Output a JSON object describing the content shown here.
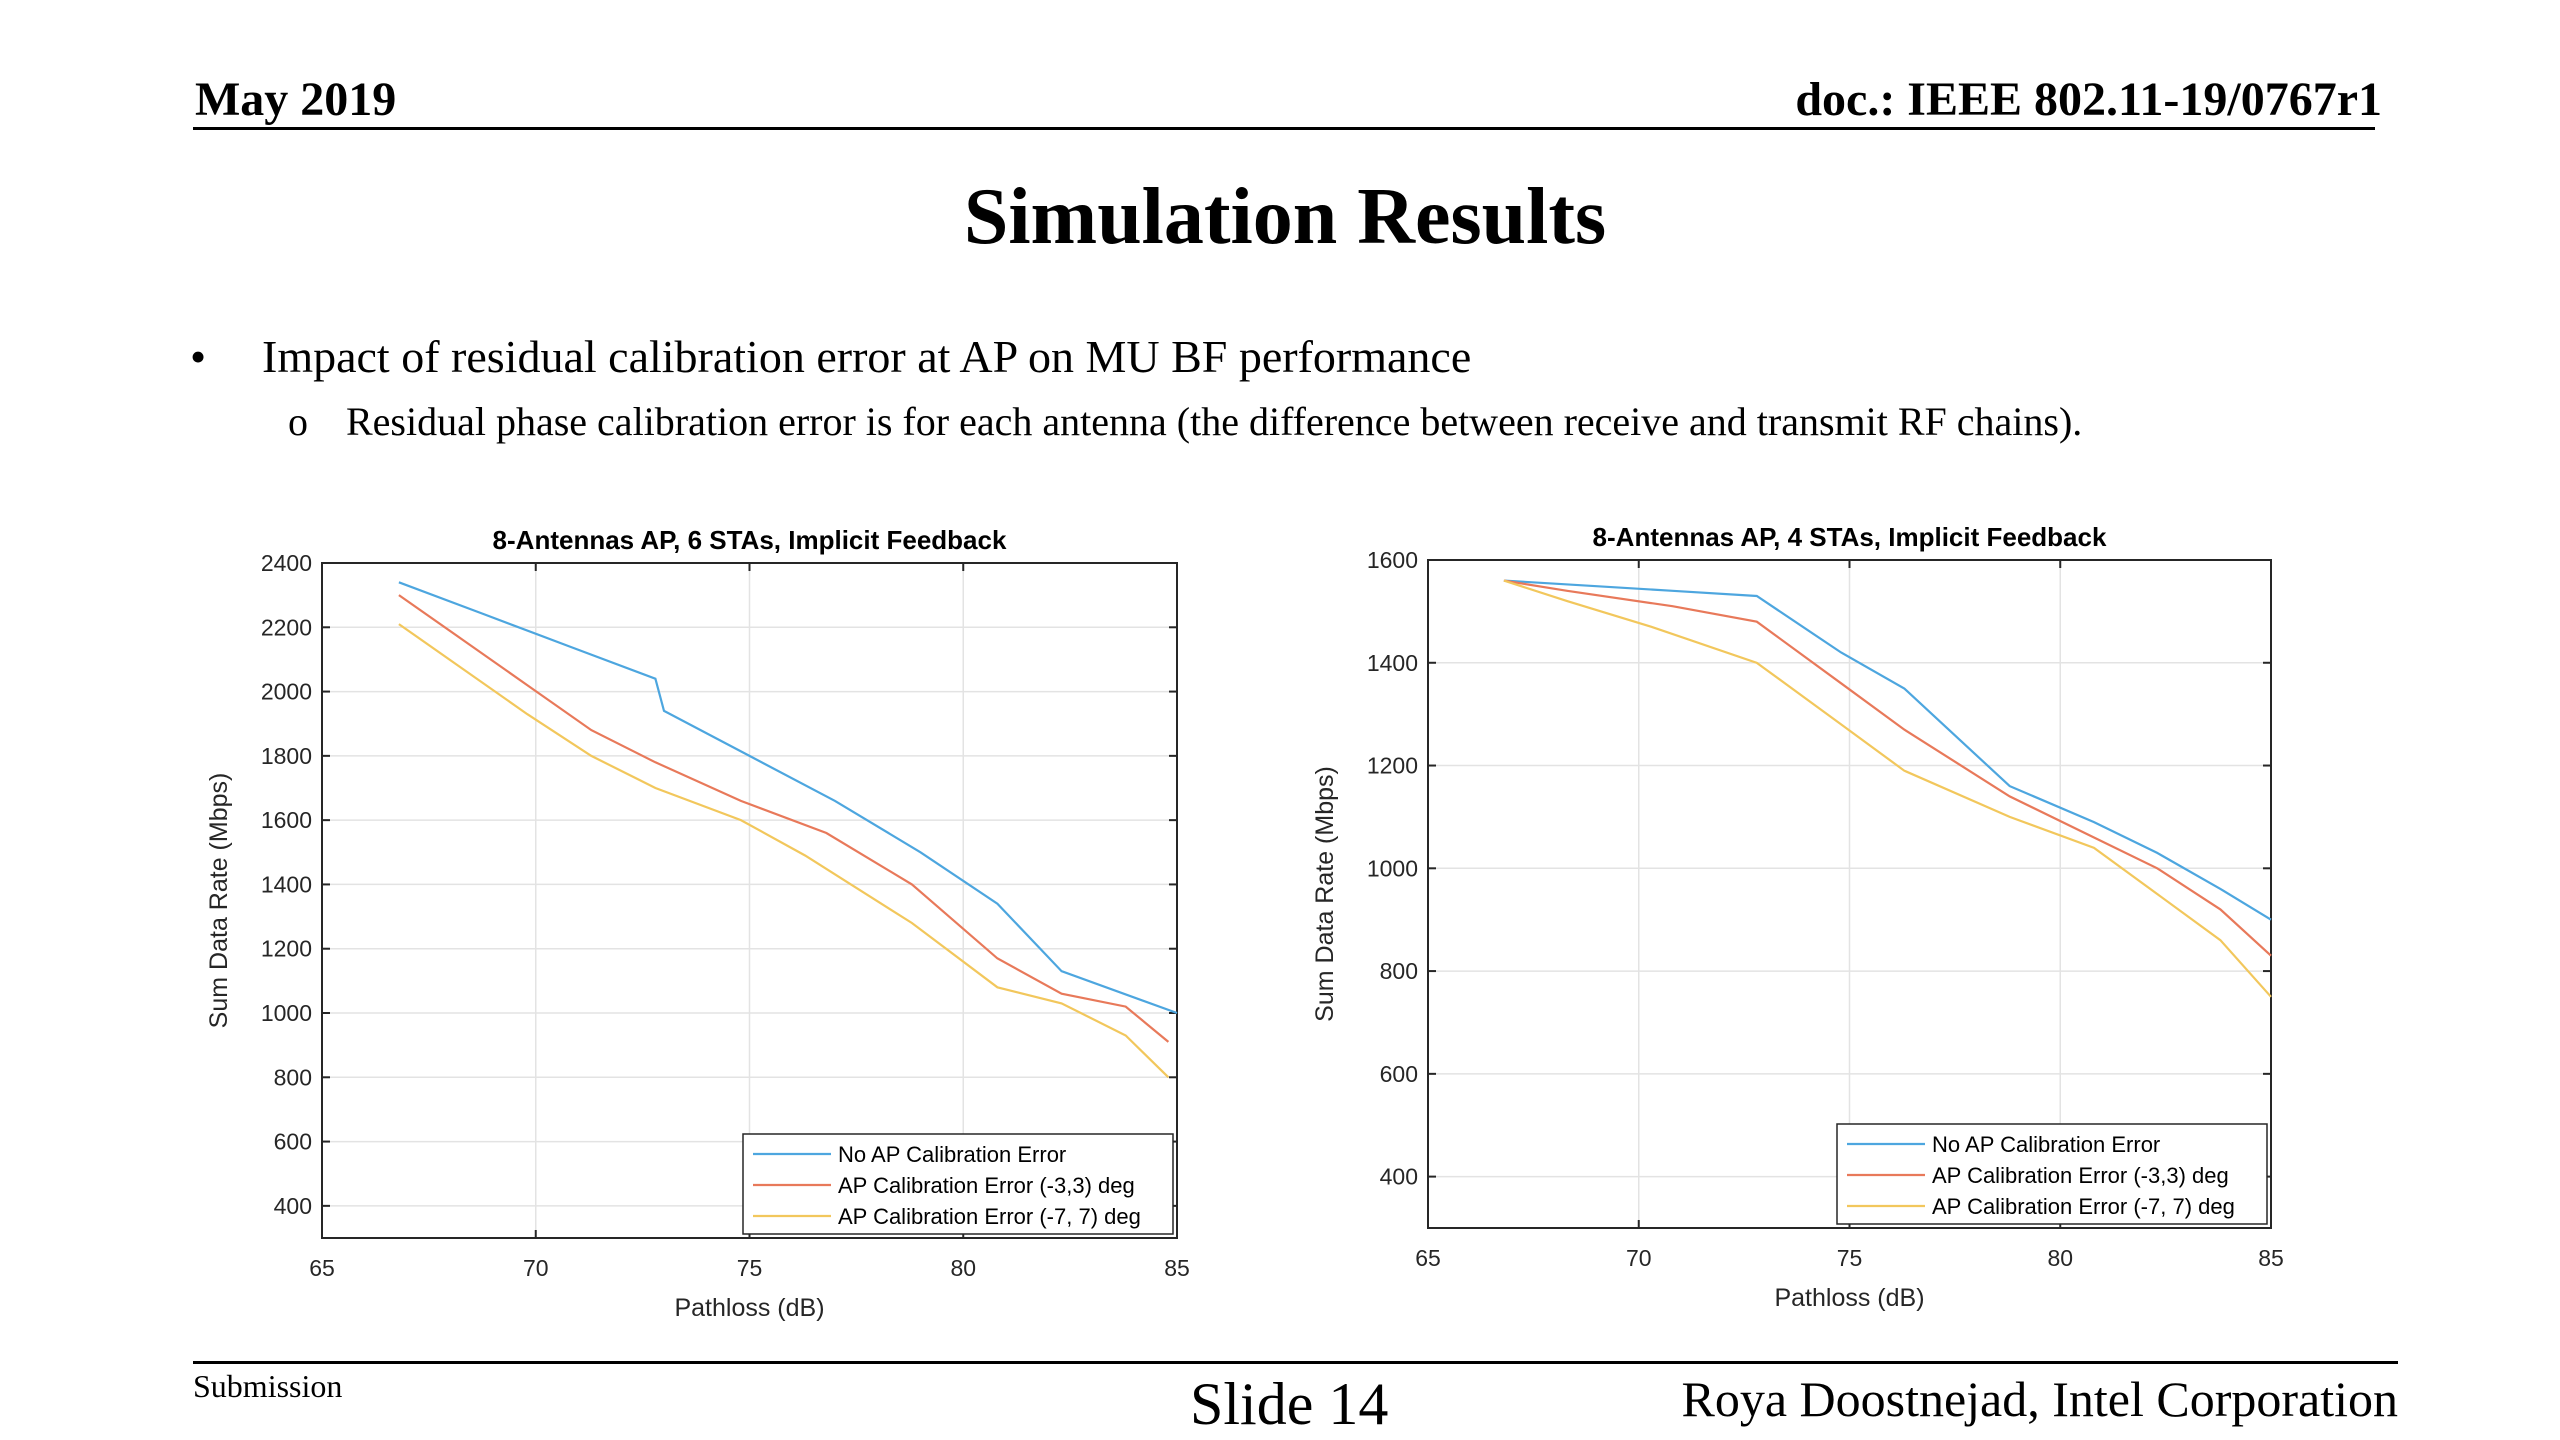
{
  "header": {
    "left": "May 2019",
    "right": "doc.: IEEE 802.11-19/0767r1"
  },
  "title": "Simulation Results",
  "bullets": {
    "main_mark": "•",
    "main": "Impact of residual calibration error at AP on MU BF performance",
    "sub_mark": "o",
    "sub": "Residual phase calibration error is for each antenna (the difference between receive and transmit RF chains)."
  },
  "footer": {
    "left": "Submission",
    "center": "Slide 14",
    "right": "Roya Doostnejad, Intel Corporation"
  },
  "colors": {
    "series1": "#4DA6DF",
    "series2": "#E8795A",
    "series3": "#F2C75C",
    "grid": "#e3e3e3",
    "axis": "#262626"
  },
  "chart_data": [
    {
      "type": "line",
      "title": "8-Antennas AP, 6 STAs, Implicit Feedback",
      "xlabel": "Pathloss (dB)",
      "ylabel": "Sum Data Rate (Mbps)",
      "xlim": [
        65,
        85
      ],
      "ylim": [
        300,
        2400
      ],
      "xticks": [
        65,
        70,
        75,
        80,
        85
      ],
      "yticks": [
        400,
        600,
        800,
        1000,
        1200,
        1400,
        1600,
        1800,
        2000,
        2200,
        2400
      ],
      "grid": true,
      "legend_position": "bottom-right",
      "x": [
        66.8,
        68.8,
        70.8,
        72.8,
        74.8,
        76.8,
        78.8,
        80.8,
        82.8,
        84.8
      ],
      "series": [
        {
          "name": "No AP Calibration Error",
          "values": [
            2340,
            2240,
            2140,
            2040,
            1940,
            1800,
            1660,
            1500,
            1340,
            1130,
            1000
          ],
          "x": [
            66.8,
            68.8,
            70.8,
            72.8,
            73.0,
            75.0,
            77.0,
            79.0,
            80.8,
            82.3,
            85.0
          ]
        },
        {
          "name": "AP Calibration Error (-3,3) deg",
          "values": [
            2300,
            2160,
            2020,
            1880,
            1780,
            1660,
            1560,
            1400,
            1170,
            1060,
            1020,
            910
          ],
          "x": [
            66.8,
            68.3,
            69.8,
            71.3,
            72.8,
            74.8,
            76.8,
            78.8,
            80.8,
            82.3,
            83.8,
            84.8
          ]
        },
        {
          "name": "AP Calibration Error (-7, 7) deg",
          "values": [
            2210,
            2070,
            1930,
            1800,
            1700,
            1600,
            1490,
            1280,
            1080,
            1030,
            930,
            800
          ],
          "x": [
            66.8,
            68.3,
            69.8,
            71.3,
            72.8,
            74.8,
            76.3,
            78.8,
            80.8,
            82.3,
            83.8,
            84.8
          ]
        }
      ]
    },
    {
      "type": "line",
      "title": "8-Antennas AP, 4 STAs, Implicit Feedback",
      "xlabel": "Pathloss (dB)",
      "ylabel": "Sum Data Rate (Mbps)",
      "xlim": [
        65,
        85
      ],
      "ylim": [
        300,
        1600
      ],
      "xticks": [
        65,
        70,
        75,
        80,
        85
      ],
      "yticks": [
        400,
        600,
        800,
        1000,
        1200,
        1400,
        1600
      ],
      "grid": true,
      "legend_position": "bottom-right",
      "series": [
        {
          "name": "No AP Calibration Error",
          "values": [
            1560,
            1550,
            1540,
            1530,
            1420,
            1350,
            1160,
            1090,
            1030,
            960,
            900
          ],
          "x": [
            66.8,
            68.8,
            70.8,
            72.8,
            74.8,
            76.3,
            78.8,
            80.8,
            82.3,
            83.8,
            85.0
          ]
        },
        {
          "name": "AP Calibration Error (-3,3) deg",
          "values": [
            1560,
            1540,
            1510,
            1480,
            1360,
            1270,
            1140,
            1060,
            1000,
            920,
            830
          ],
          "x": [
            66.8,
            68.3,
            70.8,
            72.8,
            74.8,
            76.3,
            78.8,
            80.8,
            82.3,
            83.8,
            85.0
          ]
        },
        {
          "name": "AP Calibration Error (-7, 7) deg",
          "values": [
            1560,
            1520,
            1470,
            1400,
            1280,
            1190,
            1100,
            1040,
            950,
            860,
            750
          ],
          "x": [
            66.8,
            68.3,
            70.3,
            72.8,
            74.8,
            76.3,
            78.8,
            80.8,
            82.3,
            83.8,
            85.0
          ]
        }
      ]
    }
  ]
}
